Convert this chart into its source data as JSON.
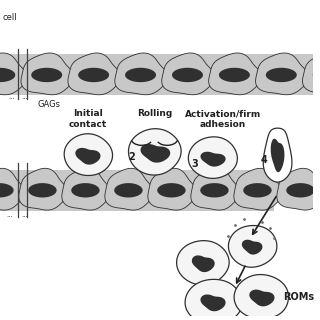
{
  "bg_color": "#ffffff",
  "vessel_gray": "#c8c8c8",
  "vessel_dark": "#909090",
  "cell_outline": "#303030",
  "nucleus_color": "#303030",
  "leuko_fill": "#f5f5f5",
  "leuko_outline": "#303030",
  "top_label": "cell",
  "gags_label": "GAGs",
  "label1": "Initial\ncontact",
  "label2": "Rolling",
  "label3": "Activation/firm\nadhesion",
  "num2": "2",
  "num3": "3",
  "num4": "4",
  "roms_label": "ROMs"
}
